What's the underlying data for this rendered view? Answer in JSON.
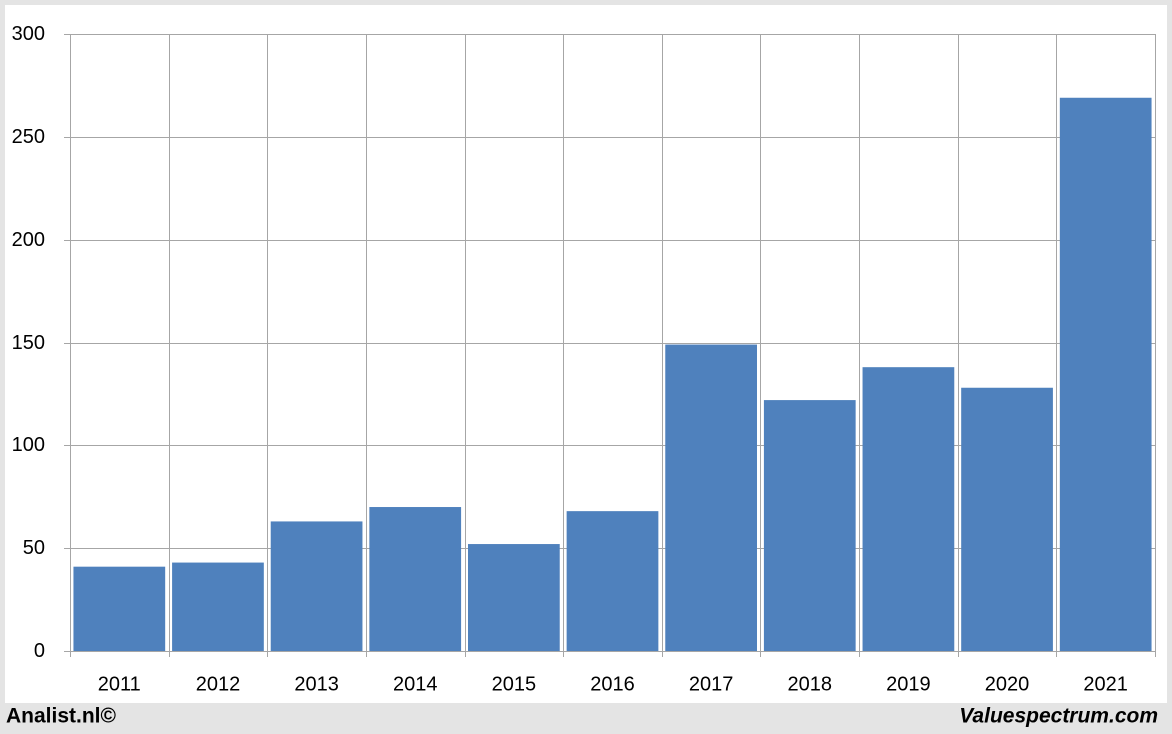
{
  "chart_data": {
    "type": "bar",
    "categories": [
      "2011",
      "2012",
      "2013",
      "2014",
      "2015",
      "2016",
      "2017",
      "2018",
      "2019",
      "2020",
      "2021"
    ],
    "values": [
      41,
      43,
      63,
      70,
      52,
      68,
      149,
      122,
      138,
      128,
      269
    ],
    "color": "#4f81bd",
    "ylim": [
      0,
      300
    ],
    "yticks": [
      0,
      50,
      100,
      150,
      200,
      250,
      300
    ],
    "grid": true
  },
  "footer": {
    "left": "Analist.nl©",
    "right": "Valuespectrum.com"
  }
}
